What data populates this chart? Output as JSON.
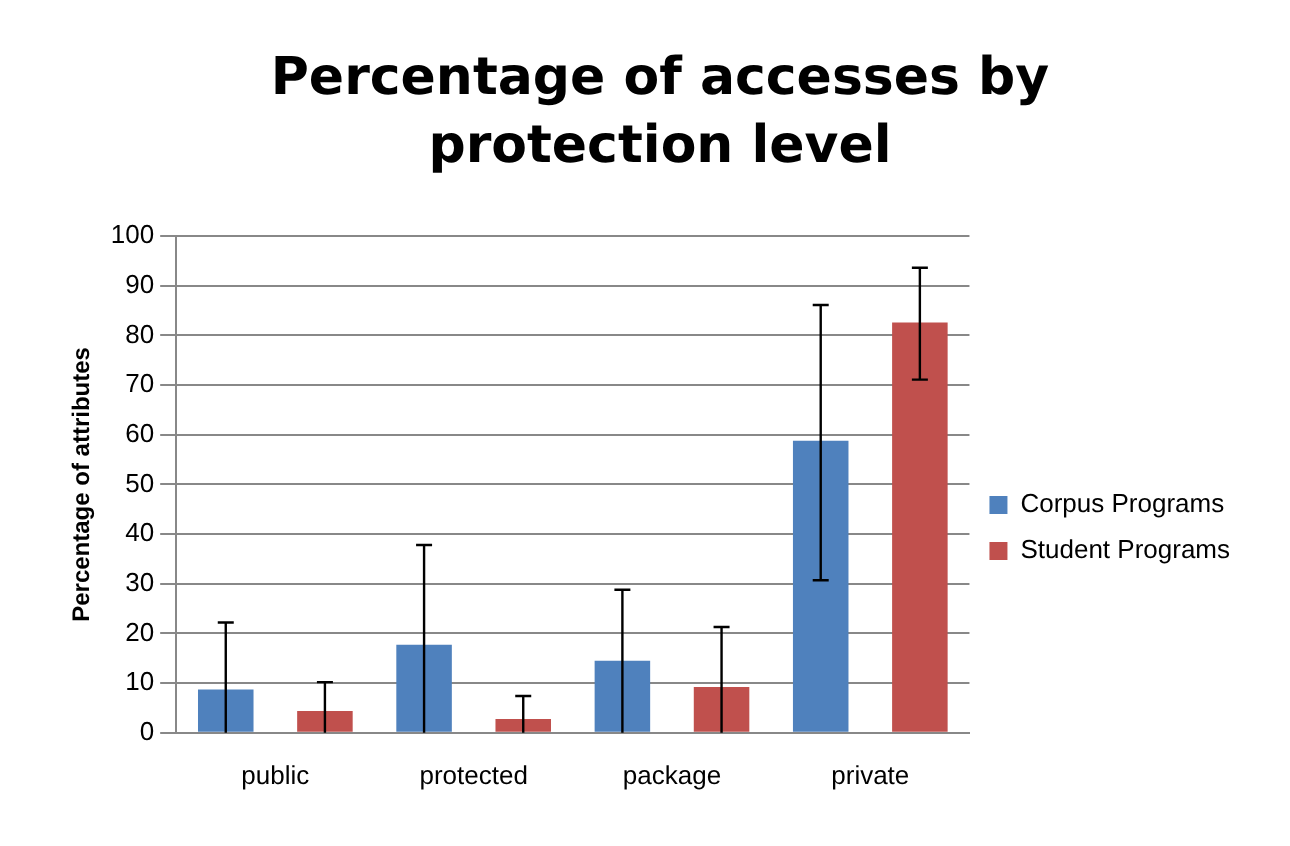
{
  "chart_data": {
    "type": "bar",
    "title": "Percentage of accesses by protection level",
    "ylabel": "Percentage of attributes",
    "categories": [
      "public",
      "protected",
      "package",
      "private"
    ],
    "series": [
      {
        "name": "Corpus Programs",
        "color": "#4f81bd",
        "values": [
          8.7,
          17.7,
          14.5,
          58.8
        ],
        "errors": [
          [
            0,
            22.2
          ],
          [
            0,
            37.8
          ],
          [
            0,
            28.8
          ],
          [
            30.7,
            86.1
          ]
        ]
      },
      {
        "name": "Student Programs",
        "color": "#c0504d",
        "values": [
          4.4,
          2.8,
          9.2,
          82.6
        ],
        "errors": [
          [
            0,
            10.2
          ],
          [
            0,
            7.4
          ],
          [
            0,
            21.3
          ],
          [
            71.1,
            93.6
          ]
        ]
      }
    ],
    "ylim": [
      0,
      100
    ],
    "yticks": [
      0,
      10,
      20,
      30,
      40,
      50,
      60,
      70,
      80,
      90,
      100
    ],
    "grid": "y",
    "legend": "right"
  }
}
